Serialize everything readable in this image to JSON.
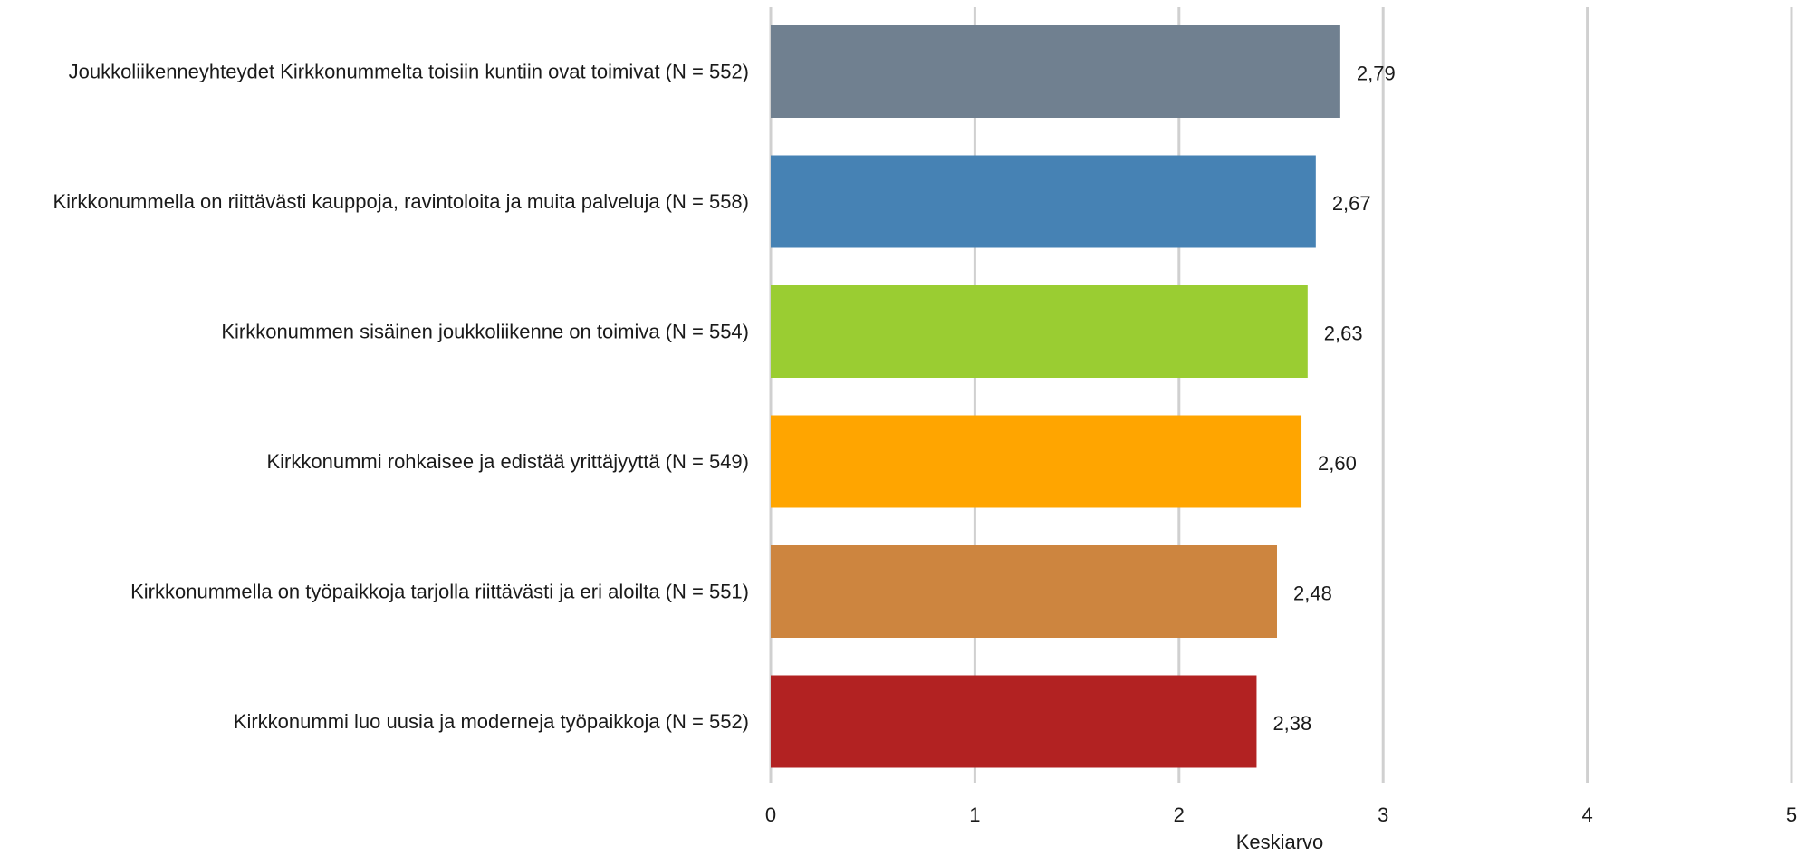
{
  "chart_data": {
    "type": "bar",
    "orientation": "horizontal",
    "categories": [
      "Joukkoliikenneyhteydet Kirkkonummelta toisiin kuntiin ovat toimivat (N = 552)",
      "Kirkkonummella on riittävästi kauppoja, ravintoloita ja muita palveluja (N = 558)",
      "Kirkkonummen sisäinen joukkoliikenne on toimiva (N = 554)",
      "Kirkkonummi rohkaisee ja edistää yrittäjyyttä (N = 549)",
      "Kirkkonummella on työpaikkoja tarjolla riittävästi ja eri aloilta (N = 551)",
      "Kirkkonummi luo uusia ja moderneja työpaikkoja (N = 552)"
    ],
    "values": [
      2.79,
      2.67,
      2.63,
      2.6,
      2.48,
      2.38
    ],
    "value_labels": [
      "2,79",
      "2,67",
      "2,63",
      "2,60",
      "2,48",
      "2,38"
    ],
    "colors": [
      "#708090",
      "#4682B4",
      "#9ACD32",
      "#FFA500",
      "#CD853F",
      "#B22222"
    ],
    "xlabel": "Keskiarvo",
    "xlim": [
      0,
      5
    ],
    "xticks": [
      0,
      1,
      2,
      3,
      4,
      5
    ],
    "xtick_labels": [
      "0",
      "1",
      "2",
      "3",
      "4",
      "5"
    ],
    "grid": "vertical",
    "grid_color": "#d0d0d0"
  }
}
